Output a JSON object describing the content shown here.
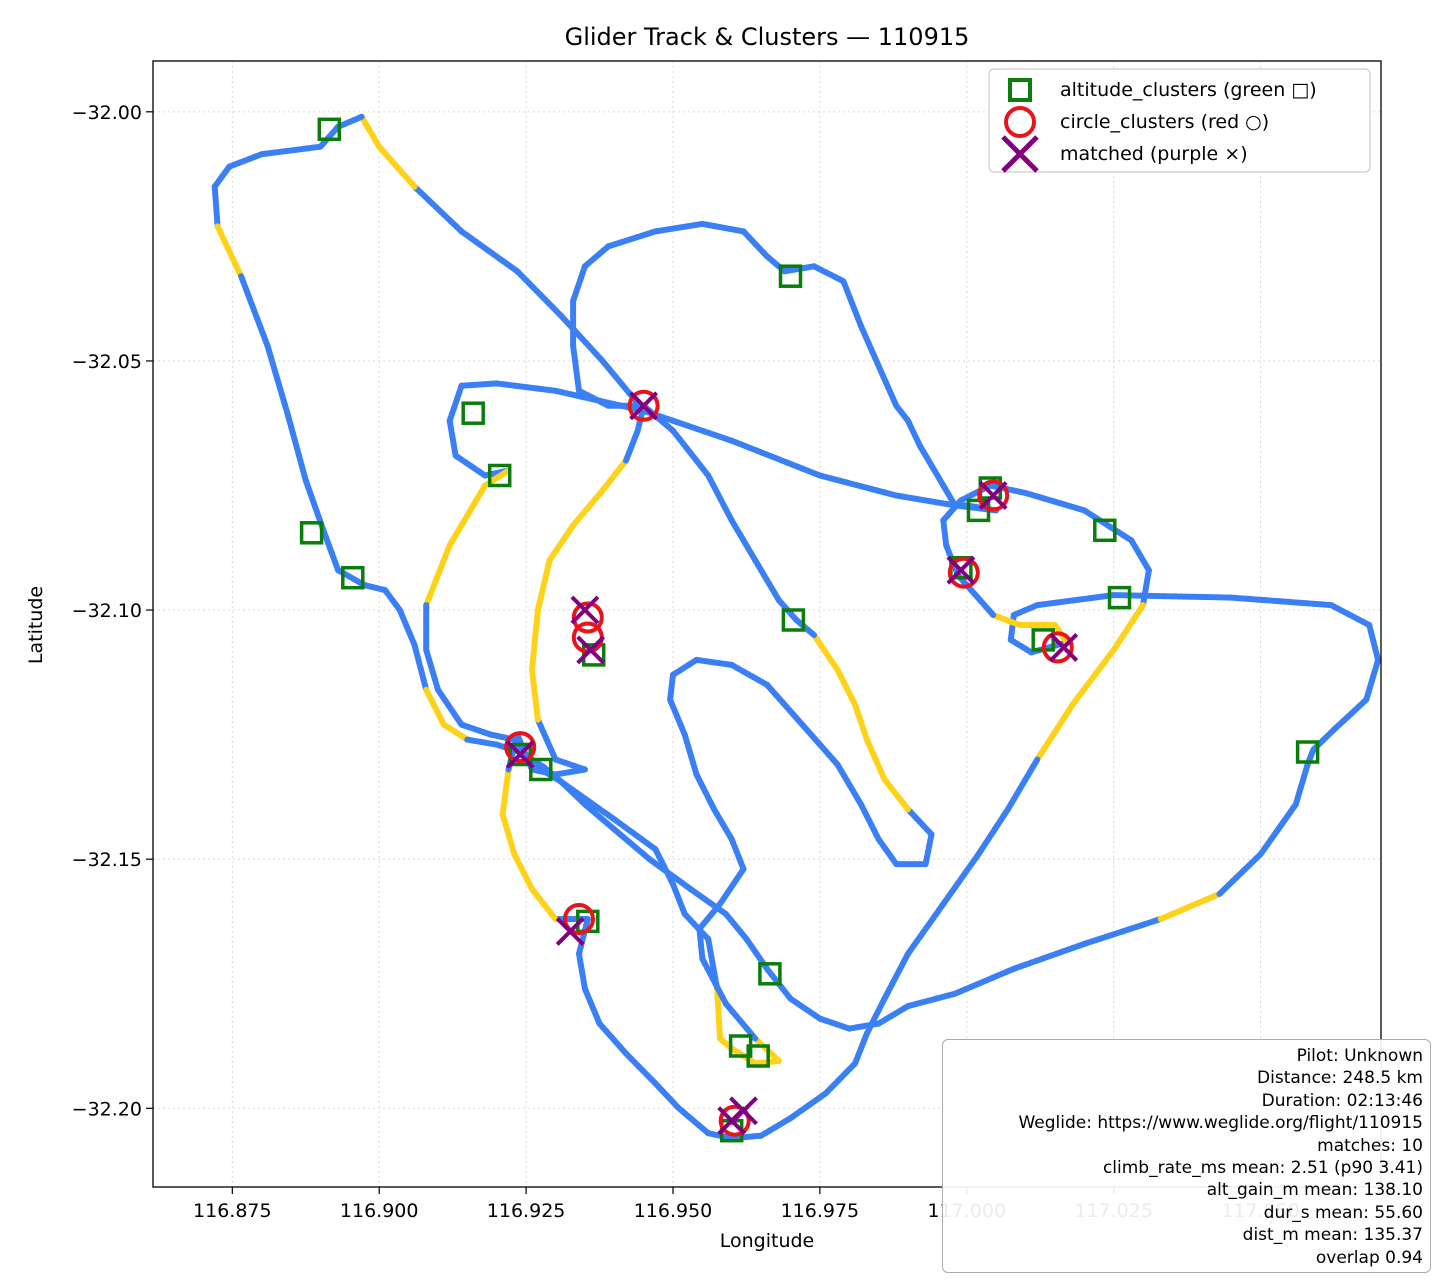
{
  "chart_data": {
    "type": "scatter",
    "title": "Glider Track & Clusters — 110915",
    "xlabel": "Longitude",
    "ylabel": "Latitude",
    "xlim": [
      116.8615,
      117.0705
    ],
    "ylim": [
      -32.2158,
      -31.9898
    ],
    "xticks": [
      116.875,
      116.9,
      116.925,
      116.95,
      116.975,
      117.0,
      117.025,
      117.05
    ],
    "xtick_labels": [
      "116.875",
      "116.900",
      "116.925",
      "116.950",
      "116.975",
      "117.000",
      "117.025",
      "117.050"
    ],
    "yticks": [
      -32.0,
      -32.05,
      -32.1,
      -32.15,
      -32.2
    ],
    "ytick_labels": [
      "−32.00",
      "−32.05",
      "−32.10",
      "−32.15",
      "−32.20"
    ],
    "grid": true,
    "legend_position": "top-right",
    "colors": {
      "track_sink": "#3b7ff5",
      "track_climb": "#ffd21a",
      "altitude": "#0a7d0a",
      "circle": "#e8141c",
      "matched": "#800080"
    },
    "legend": [
      {
        "label": "altitude_clusters (green □)",
        "marker": "square",
        "color": "#0a7d0a"
      },
      {
        "label": "circle_clusters (red ○)",
        "marker": "circle",
        "color": "#e8141c"
      },
      {
        "label": "matched (purple ×)",
        "marker": "x",
        "color": "#800080"
      }
    ],
    "track": [
      [
        116.944,
        -32.0585
      ],
      [
        116.938,
        -32.05
      ],
      [
        116.931,
        -32.041
      ],
      [
        116.9235,
        -32.032
      ],
      [
        116.914,
        -32.024
      ],
      [
        116.906,
        -32.015
      ],
      [
        116.9,
        -32.007
      ],
      [
        116.897,
        -32.001
      ],
      [
        116.893,
        -32.003
      ],
      [
        116.89,
        -32.007
      ],
      [
        116.88,
        -32.0085
      ],
      [
        116.8745,
        -32.011
      ],
      [
        116.872,
        -32.015
      ],
      [
        116.8725,
        -32.023
      ],
      [
        116.8765,
        -32.033
      ],
      [
        116.881,
        -32.047
      ],
      [
        116.8845,
        -32.061
      ],
      [
        116.8875,
        -32.074
      ],
      [
        116.8905,
        -32.084
      ],
      [
        116.893,
        -32.092
      ],
      [
        116.8975,
        -32.095
      ],
      [
        116.901,
        -32.096
      ],
      [
        116.9035,
        -32.1
      ],
      [
        116.906,
        -32.107
      ],
      [
        116.908,
        -32.116
      ],
      [
        116.911,
        -32.123
      ],
      [
        116.915,
        -32.126
      ],
      [
        116.92,
        -32.127
      ],
      [
        116.924,
        -32.1285
      ],
      [
        116.928,
        -32.1315
      ],
      [
        116.931,
        -32.1345
      ],
      [
        116.935,
        -32.139
      ],
      [
        116.94,
        -32.144
      ],
      [
        116.946,
        -32.15
      ],
      [
        116.953,
        -32.156
      ],
      [
        116.959,
        -32.161
      ],
      [
        116.9625,
        -32.166
      ],
      [
        116.966,
        -32.172
      ],
      [
        116.97,
        -32.178
      ],
      [
        116.975,
        -32.182
      ],
      [
        116.98,
        -32.184
      ],
      [
        116.985,
        -32.183
      ],
      [
        116.99,
        -32.1795
      ],
      [
        116.998,
        -32.177
      ],
      [
        117.008,
        -32.172
      ],
      [
        117.02,
        -32.167
      ],
      [
        117.033,
        -32.162
      ],
      [
        117.043,
        -32.157
      ],
      [
        117.05,
        -32.149
      ],
      [
        117.056,
        -32.139
      ],
      [
        117.058,
        -32.131
      ],
      [
        117.059,
        -32.128
      ],
      [
        117.0625,
        -32.124
      ],
      [
        117.068,
        -32.118
      ],
      [
        117.07,
        -32.11
      ],
      [
        117.0685,
        -32.103
      ],
      [
        117.062,
        -32.099
      ],
      [
        117.045,
        -32.0975
      ],
      [
        117.025,
        -32.097
      ],
      [
        117.012,
        -32.099
      ],
      [
        117.008,
        -32.101
      ],
      [
        117.0075,
        -32.106
      ],
      [
        117.011,
        -32.1085
      ],
      [
        117.017,
        -32.1065
      ],
      [
        117.015,
        -32.103
      ],
      [
        117.009,
        -32.103
      ],
      [
        117.0045,
        -32.101
      ],
      [
        117.0015,
        -32.097
      ],
      [
        116.9985,
        -32.093
      ],
      [
        116.9965,
        -32.087
      ],
      [
        116.996,
        -32.082
      ],
      [
        116.999,
        -32.078
      ],
      [
        117.004,
        -32.075
      ],
      [
        117.01,
        -32.0765
      ],
      [
        117.02,
        -32.08
      ],
      [
        117.028,
        -32.086
      ],
      [
        117.031,
        -32.092
      ],
      [
        117.03,
        -32.099
      ],
      [
        117.025,
        -32.108
      ],
      [
        117.018,
        -32.119
      ],
      [
        117.012,
        -32.13
      ],
      [
        117.007,
        -32.14
      ],
      [
        117.002,
        -32.149
      ],
      [
        116.996,
        -32.159
      ],
      [
        116.99,
        -32.169
      ],
      [
        116.986,
        -32.178
      ],
      [
        116.983,
        -32.185
      ],
      [
        116.981,
        -32.191
      ],
      [
        116.976,
        -32.197
      ],
      [
        116.97,
        -32.202
      ],
      [
        116.965,
        -32.2055
      ],
      [
        116.96,
        -32.206
      ],
      [
        116.956,
        -32.205
      ],
      [
        116.951,
        -32.2
      ],
      [
        116.947,
        -32.195
      ],
      [
        116.942,
        -32.189
      ],
      [
        116.9375,
        -32.183
      ],
      [
        116.935,
        -32.176
      ],
      [
        116.934,
        -32.169
      ],
      [
        116.9355,
        -32.162
      ],
      [
        116.93,
        -32.162
      ],
      [
        116.926,
        -32.156
      ],
      [
        116.923,
        -32.149
      ],
      [
        116.921,
        -32.141
      ],
      [
        116.922,
        -32.132
      ],
      [
        116.9235,
        -32.125
      ],
      [
        116.926,
        -32.132
      ],
      [
        116.93,
        -32.133
      ],
      [
        116.935,
        -32.132
      ],
      [
        116.93,
        -32.13
      ],
      [
        116.927,
        -32.122
      ],
      [
        116.926,
        -32.112
      ],
      [
        116.927,
        -32.1
      ],
      [
        116.929,
        -32.09
      ],
      [
        116.933,
        -32.083
      ],
      [
        116.938,
        -32.076
      ],
      [
        116.942,
        -32.07
      ],
      [
        116.944,
        -32.064
      ],
      [
        116.945,
        -32.059
      ],
      [
        116.939,
        -32.059
      ],
      [
        116.934,
        -32.056
      ],
      [
        116.933,
        -32.047
      ],
      [
        116.933,
        -32.038
      ],
      [
        116.935,
        -32.031
      ],
      [
        116.939,
        -32.027
      ],
      [
        116.947,
        -32.024
      ],
      [
        116.955,
        -32.0225
      ],
      [
        116.962,
        -32.024
      ],
      [
        116.966,
        -32.029
      ],
      [
        116.969,
        -32.032
      ],
      [
        116.974,
        -32.031
      ],
      [
        116.979,
        -32.034
      ],
      [
        116.982,
        -32.043
      ],
      [
        116.985,
        -32.051
      ],
      [
        116.988,
        -32.059
      ],
      [
        116.99,
        -32.062
      ],
      [
        116.992,
        -32.067
      ],
      [
        116.996,
        -32.075
      ],
      [
        116.998,
        -32.079
      ],
      [
        117.0,
        -32.079
      ],
      [
        117.005,
        -32.08
      ],
      [
        116.998,
        -32.079
      ],
      [
        116.988,
        -32.077
      ],
      [
        116.975,
        -32.073
      ],
      [
        116.96,
        -32.066
      ],
      [
        116.945,
        -32.06
      ],
      [
        116.93,
        -32.056
      ],
      [
        116.92,
        -32.0545
      ],
      [
        116.914,
        -32.055
      ],
      [
        116.912,
        -32.062
      ],
      [
        116.913,
        -32.069
      ],
      [
        116.918,
        -32.073
      ],
      [
        116.922,
        -32.072
      ],
      [
        116.918,
        -32.075
      ],
      [
        116.912,
        -32.087
      ],
      [
        116.908,
        -32.099
      ],
      [
        116.908,
        -32.108
      ],
      [
        116.91,
        -32.116
      ],
      [
        116.914,
        -32.123
      ],
      [
        116.919,
        -32.125
      ],
      [
        116.923,
        -32.126
      ],
      [
        116.926,
        -32.131
      ],
      [
        116.929,
        -32.133
      ],
      [
        116.931,
        -32.1345
      ],
      [
        116.94,
        -32.142
      ],
      [
        116.947,
        -32.148
      ],
      [
        116.95,
        -32.155
      ],
      [
        116.952,
        -32.161
      ],
      [
        116.956,
        -32.166
      ],
      [
        116.9575,
        -32.176
      ],
      [
        116.958,
        -32.186
      ],
      [
        116.96,
        -32.188
      ],
      [
        116.964,
        -32.191
      ],
      [
        116.968,
        -32.1905
      ],
      [
        116.964,
        -32.186
      ],
      [
        116.959,
        -32.179
      ],
      [
        116.955,
        -32.17
      ],
      [
        116.9545,
        -32.164
      ],
      [
        116.958,
        -32.159
      ],
      [
        116.962,
        -32.152
      ],
      [
        116.96,
        -32.146
      ],
      [
        116.957,
        -32.14
      ],
      [
        116.954,
        -32.133
      ],
      [
        116.952,
        -32.125
      ],
      [
        116.9495,
        -32.118
      ],
      [
        116.95,
        -32.113
      ],
      [
        116.954,
        -32.11
      ],
      [
        116.96,
        -32.111
      ],
      [
        116.966,
        -32.115
      ],
      [
        116.972,
        -32.123
      ],
      [
        116.978,
        -32.131
      ],
      [
        116.982,
        -32.139
      ],
      [
        116.985,
        -32.146
      ],
      [
        116.988,
        -32.151
      ],
      [
        116.993,
        -32.151
      ],
      [
        116.994,
        -32.145
      ],
      [
        116.99,
        -32.14
      ],
      [
        116.986,
        -32.134
      ],
      [
        116.983,
        -32.126
      ],
      [
        116.981,
        -32.119
      ],
      [
        116.978,
        -32.112
      ],
      [
        116.974,
        -32.105
      ],
      [
        116.971,
        -32.102
      ],
      [
        116.968,
        -32.098
      ],
      [
        116.964,
        -32.09
      ],
      [
        116.96,
        -32.082
      ],
      [
        116.956,
        -32.073
      ],
      [
        116.95,
        -32.064
      ],
      [
        116.945,
        -32.059
      ]
    ],
    "track_climb_spans": [
      [
        5,
        7
      ],
      [
        13,
        14
      ],
      [
        24,
        26
      ],
      [
        46,
        47
      ],
      [
        63,
        66
      ],
      [
        77,
        80
      ],
      [
        100,
        104
      ],
      [
        110,
        116
      ],
      [
        152,
        155
      ],
      [
        169,
        174
      ],
      [
        196,
        201
      ],
      [
        222,
        225
      ]
    ],
    "altitude_clusters": [
      [
        116.8915,
        -32.0035
      ],
      [
        116.97,
        -32.033
      ],
      [
        116.916,
        -32.0605
      ],
      [
        116.9205,
        -32.073
      ],
      [
        116.8885,
        -32.0845
      ],
      [
        116.8955,
        -32.0935
      ],
      [
        117.004,
        -32.0755
      ],
      [
        117.002,
        -32.08
      ],
      [
        117.0235,
        -32.084
      ],
      [
        116.999,
        -32.0915
      ],
      [
        117.026,
        -32.0975
      ],
      [
        116.9705,
        -32.102
      ],
      [
        116.9365,
        -32.109
      ],
      [
        117.013,
        -32.106
      ],
      [
        116.924,
        -32.129
      ],
      [
        116.9275,
        -32.132
      ],
      [
        117.058,
        -32.1285
      ],
      [
        116.9355,
        -32.1625
      ],
      [
        116.9665,
        -32.173
      ],
      [
        116.9615,
        -32.1875
      ],
      [
        116.9645,
        -32.1895
      ],
      [
        116.96,
        -32.2045
      ]
    ],
    "circle_clusters": [
      [
        116.945,
        -32.059
      ],
      [
        117.0045,
        -32.077
      ],
      [
        116.9995,
        -32.0925
      ],
      [
        116.9355,
        -32.1015
      ],
      [
        116.9355,
        -32.1055
      ],
      [
        117.0155,
        -32.1075
      ],
      [
        116.924,
        -32.1275
      ],
      [
        116.934,
        -32.162
      ],
      [
        116.9605,
        -32.2025
      ]
    ],
    "matched": [
      [
        116.945,
        -32.059
      ],
      [
        117.0045,
        -32.077
      ],
      [
        116.999,
        -32.092
      ],
      [
        116.935,
        -32.1
      ],
      [
        116.936,
        -32.108
      ],
      [
        117.0165,
        -32.1075
      ],
      [
        116.924,
        -32.129
      ],
      [
        116.9325,
        -32.1645
      ],
      [
        116.96,
        -32.2025
      ],
      [
        116.962,
        -32.2005
      ]
    ]
  },
  "info": {
    "pilot": "Pilot: Unknown",
    "distance": "Distance: 248.5 km",
    "duration": "Duration: 02:13:46",
    "weglide": "Weglide: https://www.weglide.org/flight/110915",
    "matches": "matches: 10",
    "climb_rate": "climb_rate_ms mean: 2.51 (p90 3.41)",
    "alt_gain": "alt_gain_m mean: 138.10",
    "dur_s": "dur_s mean: 55.60",
    "dist_m": "dist_m mean: 135.37",
    "overlap": "overlap 0.94"
  }
}
